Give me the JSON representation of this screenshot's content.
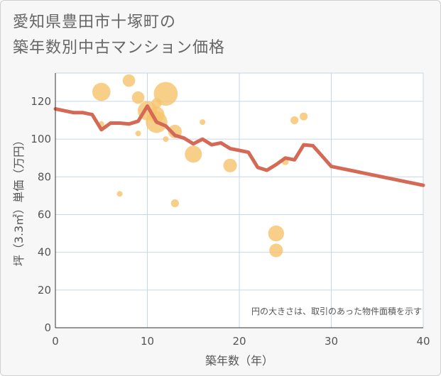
{
  "title": {
    "line1": "愛知県豊田市十塚町の",
    "line2": "築年数別中古マンション価格"
  },
  "chart_data": {
    "type": "scatter",
    "title": "愛知県豊田市十塚町の築年数別中古マンション価格",
    "xlabel": "築年数（年）",
    "ylabel": "坪（3.3㎡）単価（万円）",
    "xlim": [
      0,
      40
    ],
    "ylim": [
      0,
      135
    ],
    "xticks": [
      0,
      10,
      20,
      30,
      40
    ],
    "yticks": [
      0,
      20,
      40,
      60,
      80,
      100,
      120
    ],
    "grid": true,
    "note": "円の大きさは、取引のあった物件面積を示す",
    "colors": {
      "bubble": "#f5c36b",
      "line": "#d46a55",
      "grid": "#c9d6e6",
      "plot_bg": "#ffffff"
    },
    "series": [
      {
        "type": "bubble",
        "points": [
          {
            "x": 5,
            "y": 125,
            "size": 3.2
          },
          {
            "x": 5,
            "y": 108,
            "size": 1.0
          },
          {
            "x": 7,
            "y": 71,
            "size": 1.0
          },
          {
            "x": 8,
            "y": 131,
            "size": 2.2
          },
          {
            "x": 9,
            "y": 122,
            "size": 2.2
          },
          {
            "x": 9,
            "y": 103,
            "size": 1.0
          },
          {
            "x": 10,
            "y": 115,
            "size": 3.4
          },
          {
            "x": 11,
            "y": 119,
            "size": 1.8
          },
          {
            "x": 11,
            "y": 113,
            "size": 2.8
          },
          {
            "x": 11,
            "y": 109,
            "size": 3.8
          },
          {
            "x": 12,
            "y": 124,
            "size": 4.2
          },
          {
            "x": 12,
            "y": 100,
            "size": 1.0
          },
          {
            "x": 13,
            "y": 104,
            "size": 2.4
          },
          {
            "x": 13,
            "y": 66,
            "size": 1.4
          },
          {
            "x": 15,
            "y": 92,
            "size": 3.0
          },
          {
            "x": 16,
            "y": 109,
            "size": 1.0
          },
          {
            "x": 19,
            "y": 86,
            "size": 2.4
          },
          {
            "x": 24,
            "y": 50,
            "size": 2.8
          },
          {
            "x": 24,
            "y": 41,
            "size": 2.4
          },
          {
            "x": 25,
            "y": 88,
            "size": 1.2
          },
          {
            "x": 26,
            "y": 110,
            "size": 1.4
          },
          {
            "x": 27,
            "y": 112,
            "size": 1.4
          }
        ]
      },
      {
        "type": "line",
        "x": [
          0,
          1,
          2,
          3,
          4,
          5,
          6,
          7,
          8,
          9,
          10,
          11,
          12,
          13,
          14,
          15,
          16,
          17,
          18,
          19,
          20,
          21,
          22,
          23,
          24,
          25,
          26,
          27,
          28,
          29,
          30,
          40
        ],
        "y": [
          116,
          115,
          114,
          114,
          113,
          105,
          108.5,
          108.5,
          108,
          109.5,
          117.5,
          109,
          107,
          102,
          100.5,
          97.5,
          100,
          97,
          98,
          95,
          94,
          93,
          85,
          83.5,
          86.5,
          90,
          89,
          97,
          96.5,
          91,
          85.5,
          75.5
        ]
      }
    ]
  }
}
